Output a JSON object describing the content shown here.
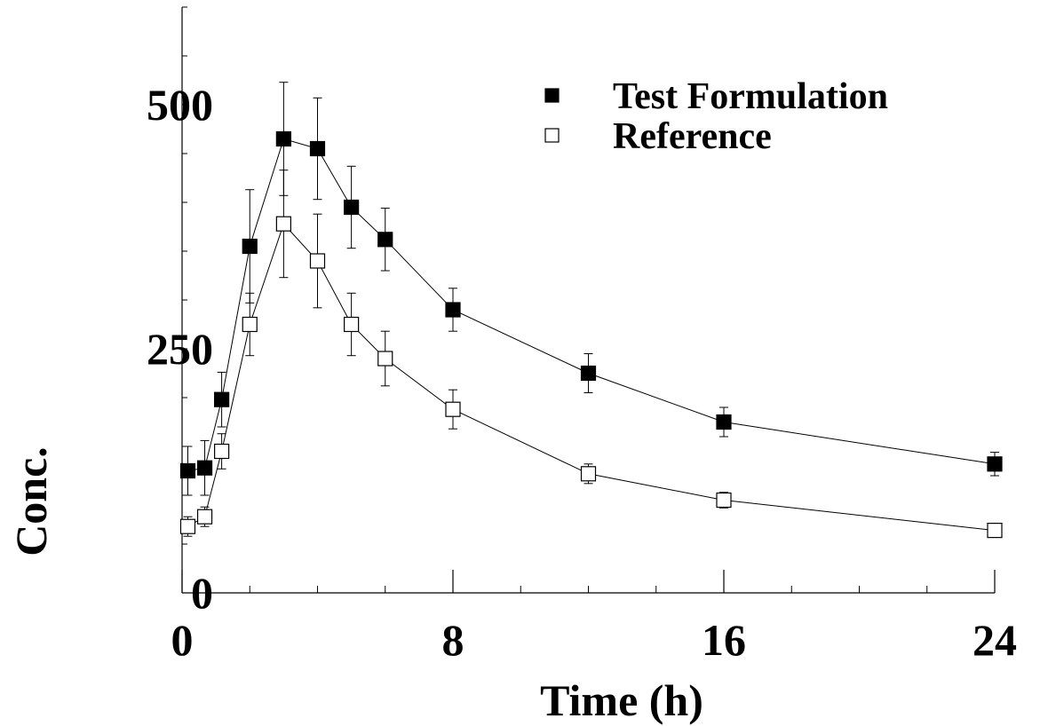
{
  "chart_data": {
    "type": "line",
    "title": "",
    "xlabel": "Time (h)",
    "ylabel": "Conc.",
    "xlim": [
      0,
      24
    ],
    "ylim": [
      0,
      600
    ],
    "xticks": [
      0,
      8,
      16,
      24
    ],
    "xtick_labels": [
      "0",
      "8",
      "16",
      "24"
    ],
    "yticks": [
      0,
      250,
      500
    ],
    "ytick_labels": [
      "0",
      "250",
      "500"
    ],
    "grid": false,
    "legend": "top-right",
    "x": [
      0.17,
      0.67,
      1.17,
      2,
      3,
      4,
      5,
      6,
      8,
      12,
      16,
      24
    ],
    "series": [
      {
        "name": "Test Formulation",
        "marker": "filled-square",
        "values": [
          125,
          128,
          198,
          355,
          465,
          455,
          395,
          362,
          290,
          225,
          175,
          132
        ],
        "errors": [
          25,
          28,
          28,
          58,
          58,
          52,
          42,
          32,
          22,
          20,
          15,
          12
        ]
      },
      {
        "name": "Reference",
        "marker": "open-square",
        "values": [
          68,
          78,
          145,
          275,
          378,
          340,
          275,
          240,
          188,
          122,
          95,
          64
        ],
        "errors": [
          10,
          10,
          18,
          32,
          55,
          48,
          32,
          28,
          20,
          10,
          8,
          6
        ]
      }
    ],
    "colors": {
      "line": "#000000",
      "filled_marker": "#000000",
      "open_marker": "#ffffff"
    }
  }
}
